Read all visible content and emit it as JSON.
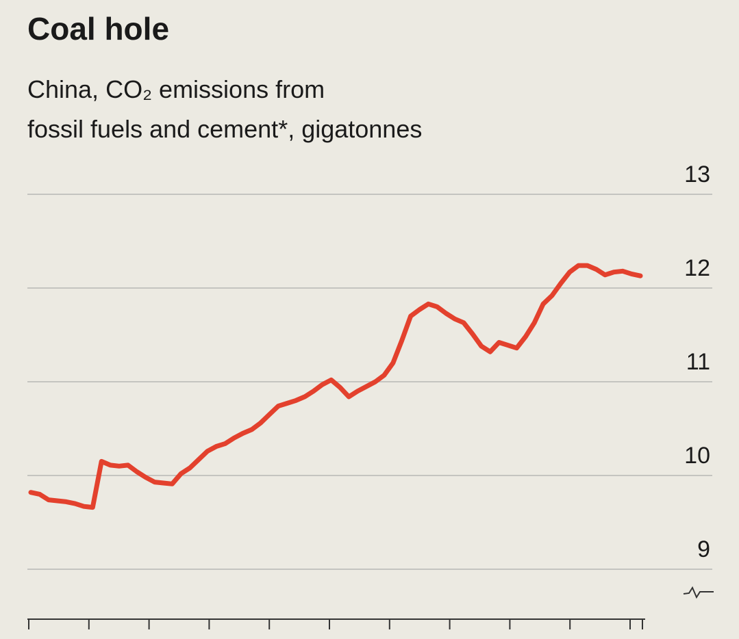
{
  "chart_data": {
    "type": "line",
    "title": "Coal hole",
    "subtitle": [
      "China, CO₂ emissions from",
      "fossil fuels and cement*, gigatonnes"
    ],
    "series": [
      {
        "color": "#e3412d",
        "values": [
          9.82,
          9.8,
          9.74,
          9.73,
          9.72,
          9.7,
          9.67,
          9.66,
          10.15,
          10.11,
          10.1,
          10.11,
          10.04,
          9.98,
          9.93,
          9.92,
          9.91,
          10.02,
          10.08,
          10.17,
          10.26,
          10.31,
          10.34,
          10.4,
          10.45,
          10.49,
          10.56,
          10.65,
          10.74,
          10.77,
          10.8,
          10.84,
          10.9,
          10.97,
          11.02,
          10.94,
          10.84,
          10.9,
          10.95,
          11.0,
          11.07,
          11.2,
          11.44,
          11.7,
          11.77,
          11.83,
          11.8,
          11.73,
          11.67,
          11.63,
          11.51,
          11.38,
          11.32,
          11.42,
          11.39,
          11.36,
          11.48,
          11.63,
          11.83,
          11.92,
          12.05,
          12.17,
          12.24,
          12.24,
          12.2,
          12.14,
          12.17,
          12.18,
          12.15,
          12.13
        ]
      }
    ],
    "ylim": [
      9,
      13
    ],
    "yticks": [
      9,
      10,
      11,
      12,
      13
    ],
    "grid": true
  }
}
